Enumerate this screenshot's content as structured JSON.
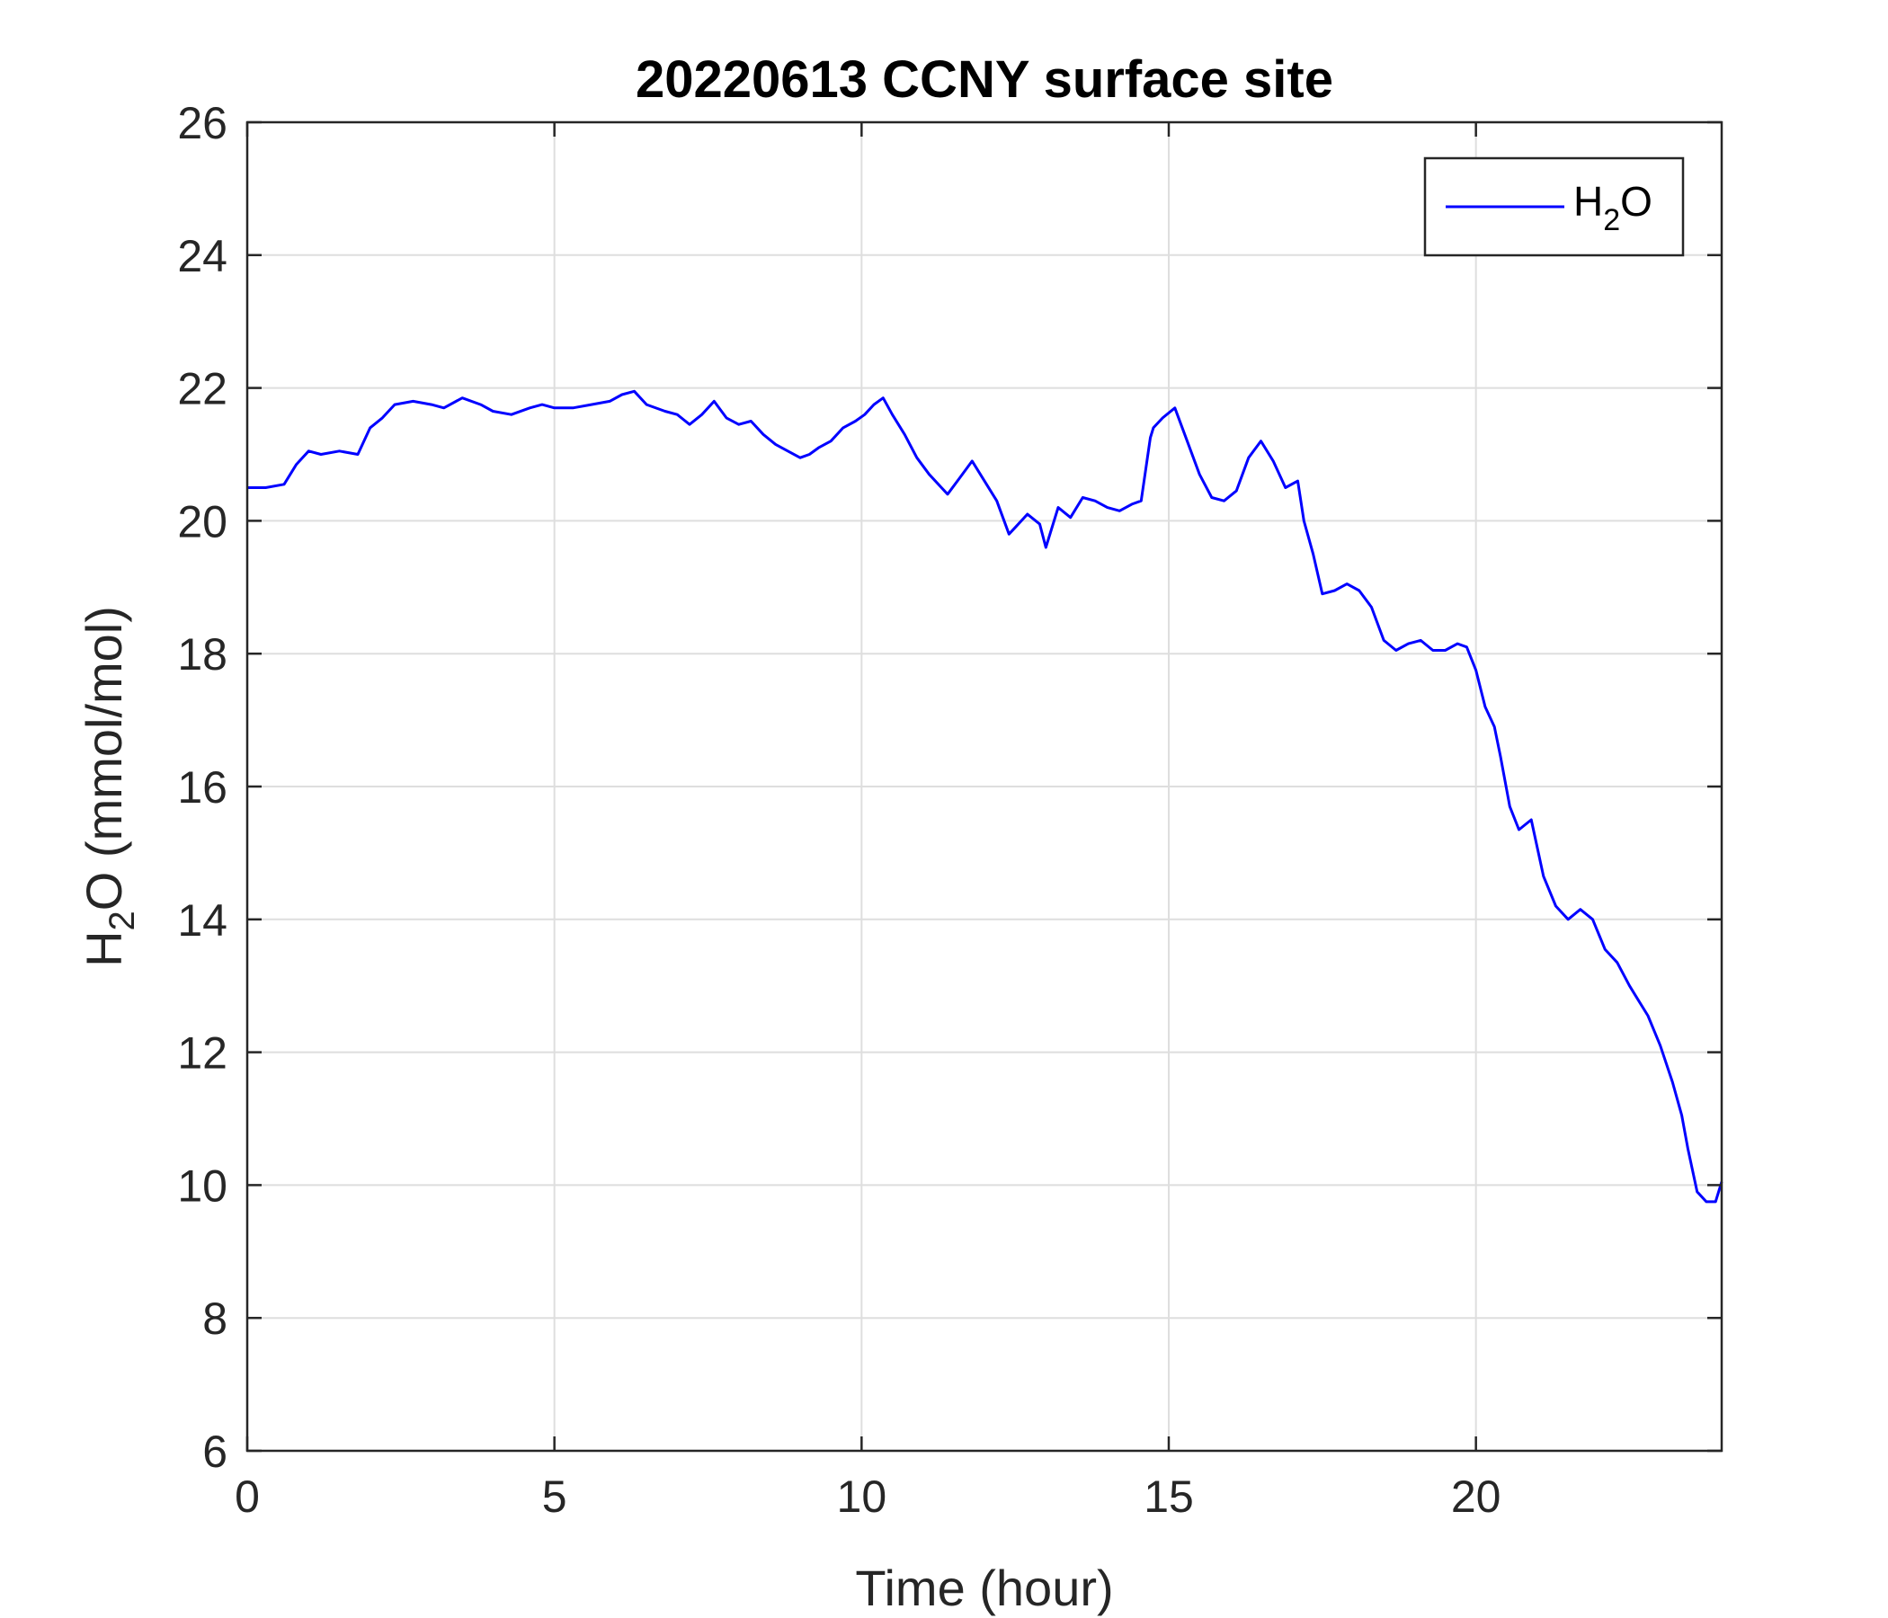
{
  "chart_data": {
    "type": "line",
    "title": "20220613 CCNY surface site",
    "xlabel": "Time (hour)",
    "ylabel": {
      "prefix": "H",
      "subscript": "2",
      "suffix": "O (mmol/mol)"
    },
    "xlim": [
      0,
      24
    ],
    "ylim": [
      6,
      26
    ],
    "xticks": [
      0,
      5,
      10,
      15,
      20
    ],
    "xtick_labels": [
      "0",
      "5",
      "10",
      "15",
      "20"
    ],
    "yticks": [
      6,
      8,
      10,
      12,
      14,
      16,
      18,
      20,
      22,
      24,
      26
    ],
    "ytick_labels": [
      "6",
      "8",
      "10",
      "12",
      "14",
      "16",
      "18",
      "20",
      "22",
      "24",
      "26"
    ],
    "grid": true,
    "legend": {
      "placement": "top-right",
      "entries": [
        {
          "prefix": "H",
          "subscript": "2",
          "suffix": "O"
        }
      ]
    },
    "series": [
      {
        "color": "#0000ff",
        "x": [
          0.0,
          0.3,
          0.6,
          0.8,
          1.0,
          1.2,
          1.5,
          1.8,
          2.0,
          2.2,
          2.4,
          2.7,
          3.0,
          3.2,
          3.5,
          3.8,
          4.0,
          4.3,
          4.6,
          4.8,
          5.0,
          5.3,
          5.6,
          5.9,
          6.1,
          6.3,
          6.5,
          6.8,
          7.0,
          7.2,
          7.4,
          7.6,
          7.8,
          8.0,
          8.2,
          8.4,
          8.6,
          8.8,
          9.0,
          9.15,
          9.3,
          9.5,
          9.7,
          9.9,
          10.05,
          10.2,
          10.35,
          10.5,
          10.7,
          10.9,
          11.1,
          11.3,
          11.4,
          11.6,
          11.8,
          12.0,
          12.2,
          12.4,
          12.5,
          12.7,
          12.9,
          13.0,
          13.2,
          13.4,
          13.6,
          13.8,
          14.0,
          14.2,
          14.4,
          14.55,
          14.7,
          14.75,
          14.9,
          15.1,
          15.3,
          15.5,
          15.7,
          15.9,
          16.1,
          16.3,
          16.5,
          16.7,
          16.9,
          17.1,
          17.2,
          17.35,
          17.5,
          17.7,
          17.9,
          18.1,
          18.3,
          18.5,
          18.7,
          18.9,
          19.1,
          19.3,
          19.5,
          19.7,
          19.85,
          20.0,
          20.15,
          20.3,
          20.4,
          20.55,
          20.7,
          20.9,
          21.1,
          21.3,
          21.5,
          21.7,
          21.9,
          22.1,
          22.3,
          22.5,
          22.6,
          22.8,
          23.0,
          23.2,
          23.35,
          23.45,
          23.6,
          23.75,
          23.9,
          24.0
        ],
        "y": [
          20.5,
          20.5,
          20.55,
          20.85,
          21.05,
          21.0,
          21.05,
          21.0,
          21.4,
          21.55,
          21.75,
          21.8,
          21.75,
          21.7,
          21.85,
          21.75,
          21.65,
          21.6,
          21.7,
          21.75,
          21.7,
          21.7,
          21.75,
          21.8,
          21.9,
          21.95,
          21.75,
          21.65,
          21.6,
          21.45,
          21.6,
          21.8,
          21.55,
          21.45,
          21.5,
          21.3,
          21.15,
          21.05,
          20.95,
          21.0,
          21.1,
          21.2,
          21.4,
          21.5,
          21.6,
          21.75,
          21.85,
          21.6,
          21.3,
          20.95,
          20.7,
          20.5,
          20.4,
          20.65,
          20.9,
          20.6,
          20.3,
          19.8,
          19.9,
          20.1,
          19.95,
          19.6,
          20.2,
          20.05,
          20.35,
          20.3,
          20.2,
          20.15,
          20.25,
          20.3,
          21.25,
          21.4,
          21.55,
          21.7,
          21.2,
          20.7,
          20.35,
          20.3,
          20.45,
          20.95,
          21.2,
          20.9,
          20.5,
          20.6,
          20.0,
          19.5,
          18.9,
          18.95,
          19.05,
          18.95,
          18.7,
          18.2,
          18.05,
          18.15,
          18.2,
          18.05,
          18.05,
          18.15,
          18.1,
          17.75,
          17.2,
          16.9,
          16.45,
          15.7,
          15.35,
          15.5,
          14.65,
          14.2,
          14.0,
          14.15,
          14.0,
          13.55,
          13.35,
          13.0,
          12.85,
          12.55,
          12.1,
          11.55,
          11.05,
          10.55,
          9.9,
          9.75,
          9.75,
          10.05
        ]
      }
    ]
  }
}
